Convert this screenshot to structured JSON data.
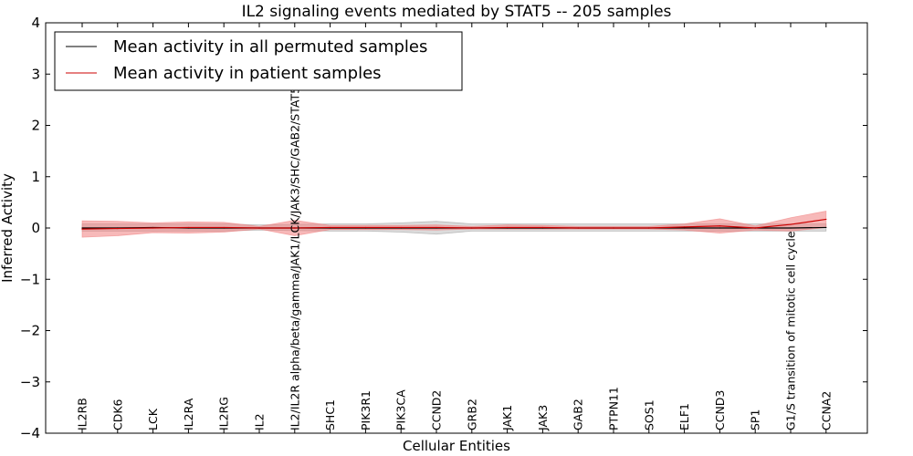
{
  "chart_data": {
    "type": "line",
    "title": "IL2 signaling events mediated by STAT5 -- 205 samples",
    "xlabel": "Cellular Entities",
    "ylabel": "Inferred Activity",
    "ylim": [
      -4,
      4
    ],
    "yticks": [
      4,
      3,
      2,
      1,
      0,
      -1,
      -2,
      -3,
      -4
    ],
    "ytick_labels": [
      "4",
      "3",
      "2",
      "1",
      "0",
      "−1",
      "−2",
      "−3",
      "−4"
    ],
    "categories": [
      "IL2RB",
      "CDK6",
      "LCK",
      "IL2RA",
      "IL2RG",
      "IL2",
      "IL2/IL2R alpha/beta/gamma/JAK1/LCK/JAK3/SHC/GAB2/STAT5",
      "SHC1",
      "PIK3R1",
      "PIK3CA",
      "CCND2",
      "GRB2",
      "JAK1",
      "JAK3",
      "GAB2",
      "PTPN11",
      "SOS1",
      "ELF1",
      "CCND3",
      "SP1",
      "G1/S transition of mitotic cell cycle",
      "CCNA2"
    ],
    "series": [
      {
        "name": "Mean activity in all permuted samples",
        "color": "#000000",
        "values": [
          0.0,
          0.0,
          0.01,
          0.0,
          0.0,
          0.0,
          0.0,
          0.0,
          0.0,
          0.0,
          0.0,
          0.0,
          0.0,
          0.0,
          0.0,
          0.0,
          0.0,
          0.0,
          0.0,
          0.0,
          0.0,
          0.01
        ],
        "band_low": [
          -0.06,
          -0.06,
          -0.06,
          -0.06,
          -0.06,
          -0.04,
          -0.05,
          -0.06,
          -0.06,
          -0.08,
          -0.12,
          -0.06,
          -0.06,
          -0.06,
          -0.06,
          -0.06,
          -0.06,
          -0.06,
          -0.06,
          -0.06,
          -0.06,
          -0.06
        ],
        "band_high": [
          0.08,
          0.08,
          0.08,
          0.08,
          0.08,
          0.06,
          0.07,
          0.08,
          0.08,
          0.1,
          0.13,
          0.08,
          0.08,
          0.08,
          0.08,
          0.08,
          0.08,
          0.08,
          0.08,
          0.08,
          0.08,
          0.08
        ],
        "band_color": "#999999"
      },
      {
        "name": "Mean activity in patient samples",
        "color": "#cc0000",
        "values": [
          -0.02,
          -0.01,
          0.0,
          0.01,
          0.01,
          0.0,
          0.0,
          0.01,
          0.01,
          0.01,
          0.01,
          0.0,
          0.01,
          0.01,
          0.0,
          0.0,
          0.0,
          0.02,
          0.04,
          0.0,
          0.07,
          0.17
        ],
        "band_low": [
          -0.18,
          -0.15,
          -0.09,
          -0.1,
          -0.08,
          -0.02,
          -0.15,
          -0.03,
          -0.03,
          -0.03,
          -0.04,
          -0.02,
          -0.02,
          -0.02,
          -0.02,
          -0.02,
          -0.02,
          -0.04,
          -0.1,
          -0.04,
          -0.06,
          0.01
        ],
        "band_high": [
          0.14,
          0.13,
          0.1,
          0.12,
          0.11,
          0.03,
          0.15,
          0.05,
          0.05,
          0.05,
          0.06,
          0.03,
          0.06,
          0.05,
          0.03,
          0.03,
          0.03,
          0.08,
          0.18,
          0.04,
          0.2,
          0.33
        ],
        "band_color": "#f08080"
      }
    ],
    "legend": [
      {
        "label": "Mean activity in all permuted samples",
        "color": "#000000"
      },
      {
        "label": "Mean activity in patient samples",
        "color": "#cc0000"
      }
    ],
    "legend_position": "top-left"
  }
}
